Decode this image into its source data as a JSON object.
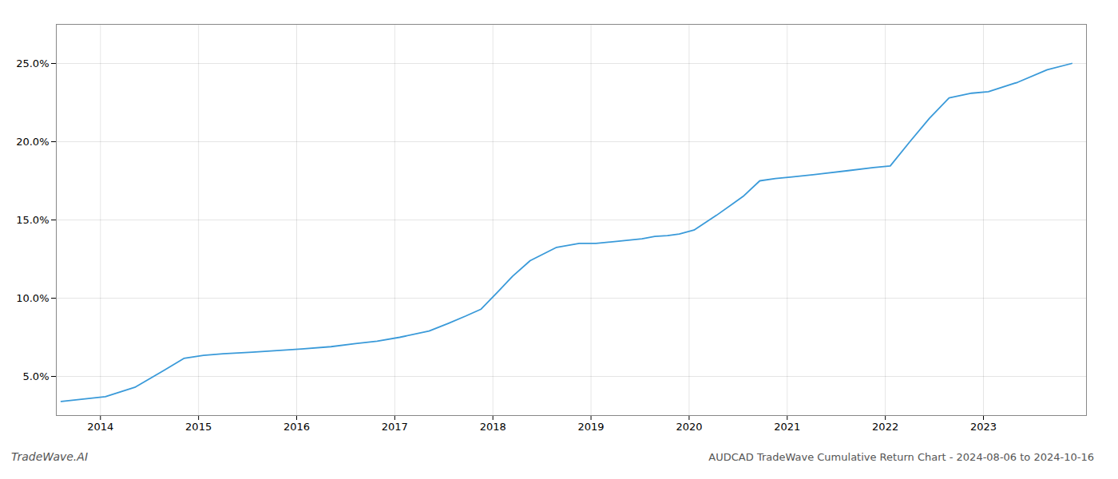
{
  "chart_data": {
    "type": "line",
    "title": "AUDCAD TradeWave Cumulative Return Chart - 2024-08-06 to 2024-10-16",
    "annotations": [
      "TradeWave.AI"
    ],
    "color": "#3a9ad9",
    "grid": true,
    "x": [
      2013.6,
      2014.05,
      2014.35,
      2014.65,
      2014.85,
      2015.05,
      2015.25,
      2015.55,
      2015.8,
      2016.05,
      2016.35,
      2016.6,
      2016.82,
      2017.05,
      2017.35,
      2017.55,
      2017.72,
      2017.88,
      2018.05,
      2018.2,
      2018.38,
      2018.65,
      2018.88,
      2019.05,
      2019.3,
      2019.52,
      2019.65,
      2019.78,
      2019.9,
      2020.05,
      2020.28,
      2020.55,
      2020.72,
      2020.88,
      2021.05,
      2021.35,
      2021.62,
      2021.88,
      2022.05,
      2022.25,
      2022.45,
      2022.65,
      2022.88,
      2023.05,
      2023.35,
      2023.65,
      2023.9
    ],
    "values": [
      3.4,
      3.7,
      4.3,
      5.4,
      6.15,
      6.35,
      6.45,
      6.55,
      6.65,
      6.75,
      6.9,
      7.1,
      7.25,
      7.5,
      7.9,
      8.4,
      8.85,
      9.3,
      10.4,
      11.4,
      12.4,
      13.25,
      13.5,
      13.5,
      13.65,
      13.8,
      13.95,
      14.0,
      14.1,
      14.35,
      15.3,
      16.5,
      17.5,
      17.65,
      17.75,
      17.95,
      18.15,
      18.35,
      18.45,
      20.0,
      21.5,
      22.8,
      23.1,
      23.2,
      23.8,
      24.6,
      25.0
    ],
    "xlim": [
      2013.55,
      2024.05
    ],
    "xticks": [
      2014,
      2015,
      2016,
      2017,
      2018,
      2019,
      2020,
      2021,
      2022,
      2023
    ],
    "ylim": [
      2.5,
      27.5
    ],
    "yticks": [
      {
        "value": 5.0,
        "label": "5.0%"
      },
      {
        "value": 10.0,
        "label": "10.0%"
      },
      {
        "value": 15.0,
        "label": "15.0%"
      },
      {
        "value": 20.0,
        "label": "20.0%"
      },
      {
        "value": 25.0,
        "label": "25.0%"
      }
    ]
  }
}
